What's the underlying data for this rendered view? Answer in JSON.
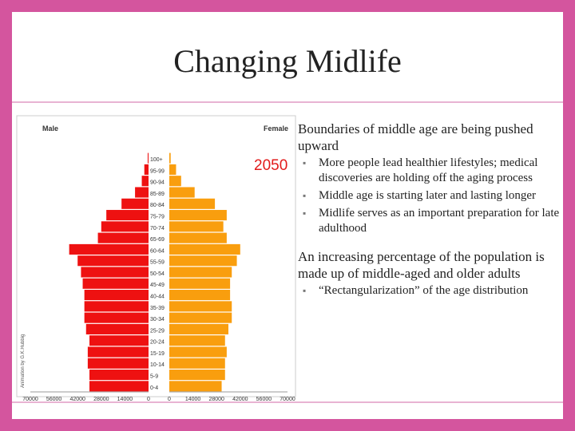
{
  "slide": {
    "title": "Changing Midlife",
    "bullet_marker": "▪",
    "bullets": [
      {
        "text": "Boundaries of middle age are being pushed upward",
        "sub": [
          "More people lead healthier lifestyles; medical discoveries are holding off the aging process",
          "Middle age is starting later and lasting longer",
          "Midlife serves as an important preparation for late adulthood"
        ]
      },
      {
        "text": "An increasing percentage of the population is made up of middle-aged and older adults",
        "sub": [
          "“Rectangularization” of the age distribution"
        ]
      }
    ]
  },
  "chart_data": {
    "type": "bar",
    "orientation": "horizontal",
    "layout": "population-pyramid",
    "year_label": "2050",
    "left_label": "Male",
    "right_label": "Female",
    "credit": "Animation by G.K.Hubbig",
    "age_groups": [
      "100+",
      "95-99",
      "90-94",
      "85-89",
      "80-84",
      "75-79",
      "70-74",
      "65-69",
      "60-64",
      "55-59",
      "50-54",
      "45-49",
      "40-44",
      "35-39",
      "30-34",
      "25-29",
      "20-24",
      "15-19",
      "10-14",
      "5-9",
      "0-4"
    ],
    "x_ticks_left": [
      "70000",
      "56000",
      "42000",
      "28000",
      "14000",
      "0"
    ],
    "x_ticks_right": [
      "0",
      "14000",
      "28000",
      "42000",
      "56000",
      "70000"
    ],
    "xlim": [
      0,
      70000
    ],
    "series": [
      {
        "name": "Male",
        "color": "#ee1111",
        "values": [
          500,
          2500,
          4000,
          8000,
          16000,
          25000,
          28000,
          30000,
          47000,
          42000,
          40000,
          39000,
          38000,
          38000,
          38000,
          37000,
          35000,
          36000,
          36000,
          35000,
          35000
        ]
      },
      {
        "name": "Female",
        "color": "#f99e0e",
        "values": [
          800,
          4000,
          7000,
          15000,
          27000,
          34000,
          32000,
          34000,
          42000,
          40000,
          37000,
          36000,
          36000,
          37000,
          37000,
          35000,
          33000,
          34000,
          33000,
          33000,
          31000
        ]
      }
    ]
  }
}
